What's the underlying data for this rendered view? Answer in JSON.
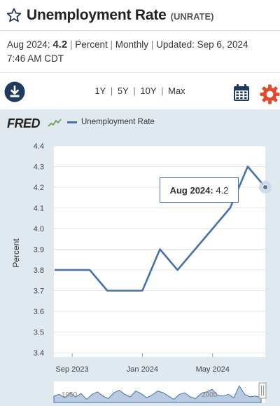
{
  "header": {
    "title": "Unemployment Rate",
    "series_id": "(UNRATE)"
  },
  "meta": {
    "period": "Aug 2024:",
    "value": "4.2",
    "units": "Percent",
    "frequency": "Monthly",
    "updated_label": "Updated:",
    "updated": "Sep 6, 2024",
    "time": "7:46 AM CDT"
  },
  "toolbar": {
    "ranges": [
      "1Y",
      "5Y",
      "10Y",
      "Max"
    ],
    "download_icon": "download-icon",
    "calendar_icon": "calendar-icon",
    "settings_icon": "gear-icon"
  },
  "colors": {
    "line": "#4572a7",
    "chart_bg": "#e1e9f0",
    "gear": "#e8472b",
    "icon_dark": "#1f3a5f"
  },
  "chart": {
    "logo": "FRED",
    "legend": "Unemployment Rate",
    "tooltip_label": "Aug 2024:",
    "tooltip_value": "4.2"
  },
  "chart_data": {
    "type": "line",
    "ylabel": "Percent",
    "xlabel": "",
    "ylim": [
      3.4,
      4.4
    ],
    "yticks": [
      "4.4",
      "4.3",
      "4.2",
      "4.1",
      "4.0",
      "3.9",
      "3.8",
      "3.7",
      "3.6",
      "3.5",
      "3.4"
    ],
    "xticks": [
      "Sep 2023",
      "Jan 2024",
      "May 2024"
    ],
    "x": [
      "2023-08",
      "2023-09",
      "2023-10",
      "2023-11",
      "2023-12",
      "2024-01",
      "2024-02",
      "2024-03",
      "2024-04",
      "2024-05",
      "2024-06",
      "2024-07",
      "2024-08"
    ],
    "series": [
      {
        "name": "Unemployment Rate",
        "values": [
          3.8,
          3.8,
          3.8,
          3.7,
          3.7,
          3.7,
          3.9,
          3.8,
          3.9,
          4.0,
          4.1,
          4.3,
          4.2
        ]
      }
    ],
    "grid": true,
    "legend": "top-left"
  },
  "navigator": {
    "labels": [
      "1950",
      "2000"
    ]
  }
}
